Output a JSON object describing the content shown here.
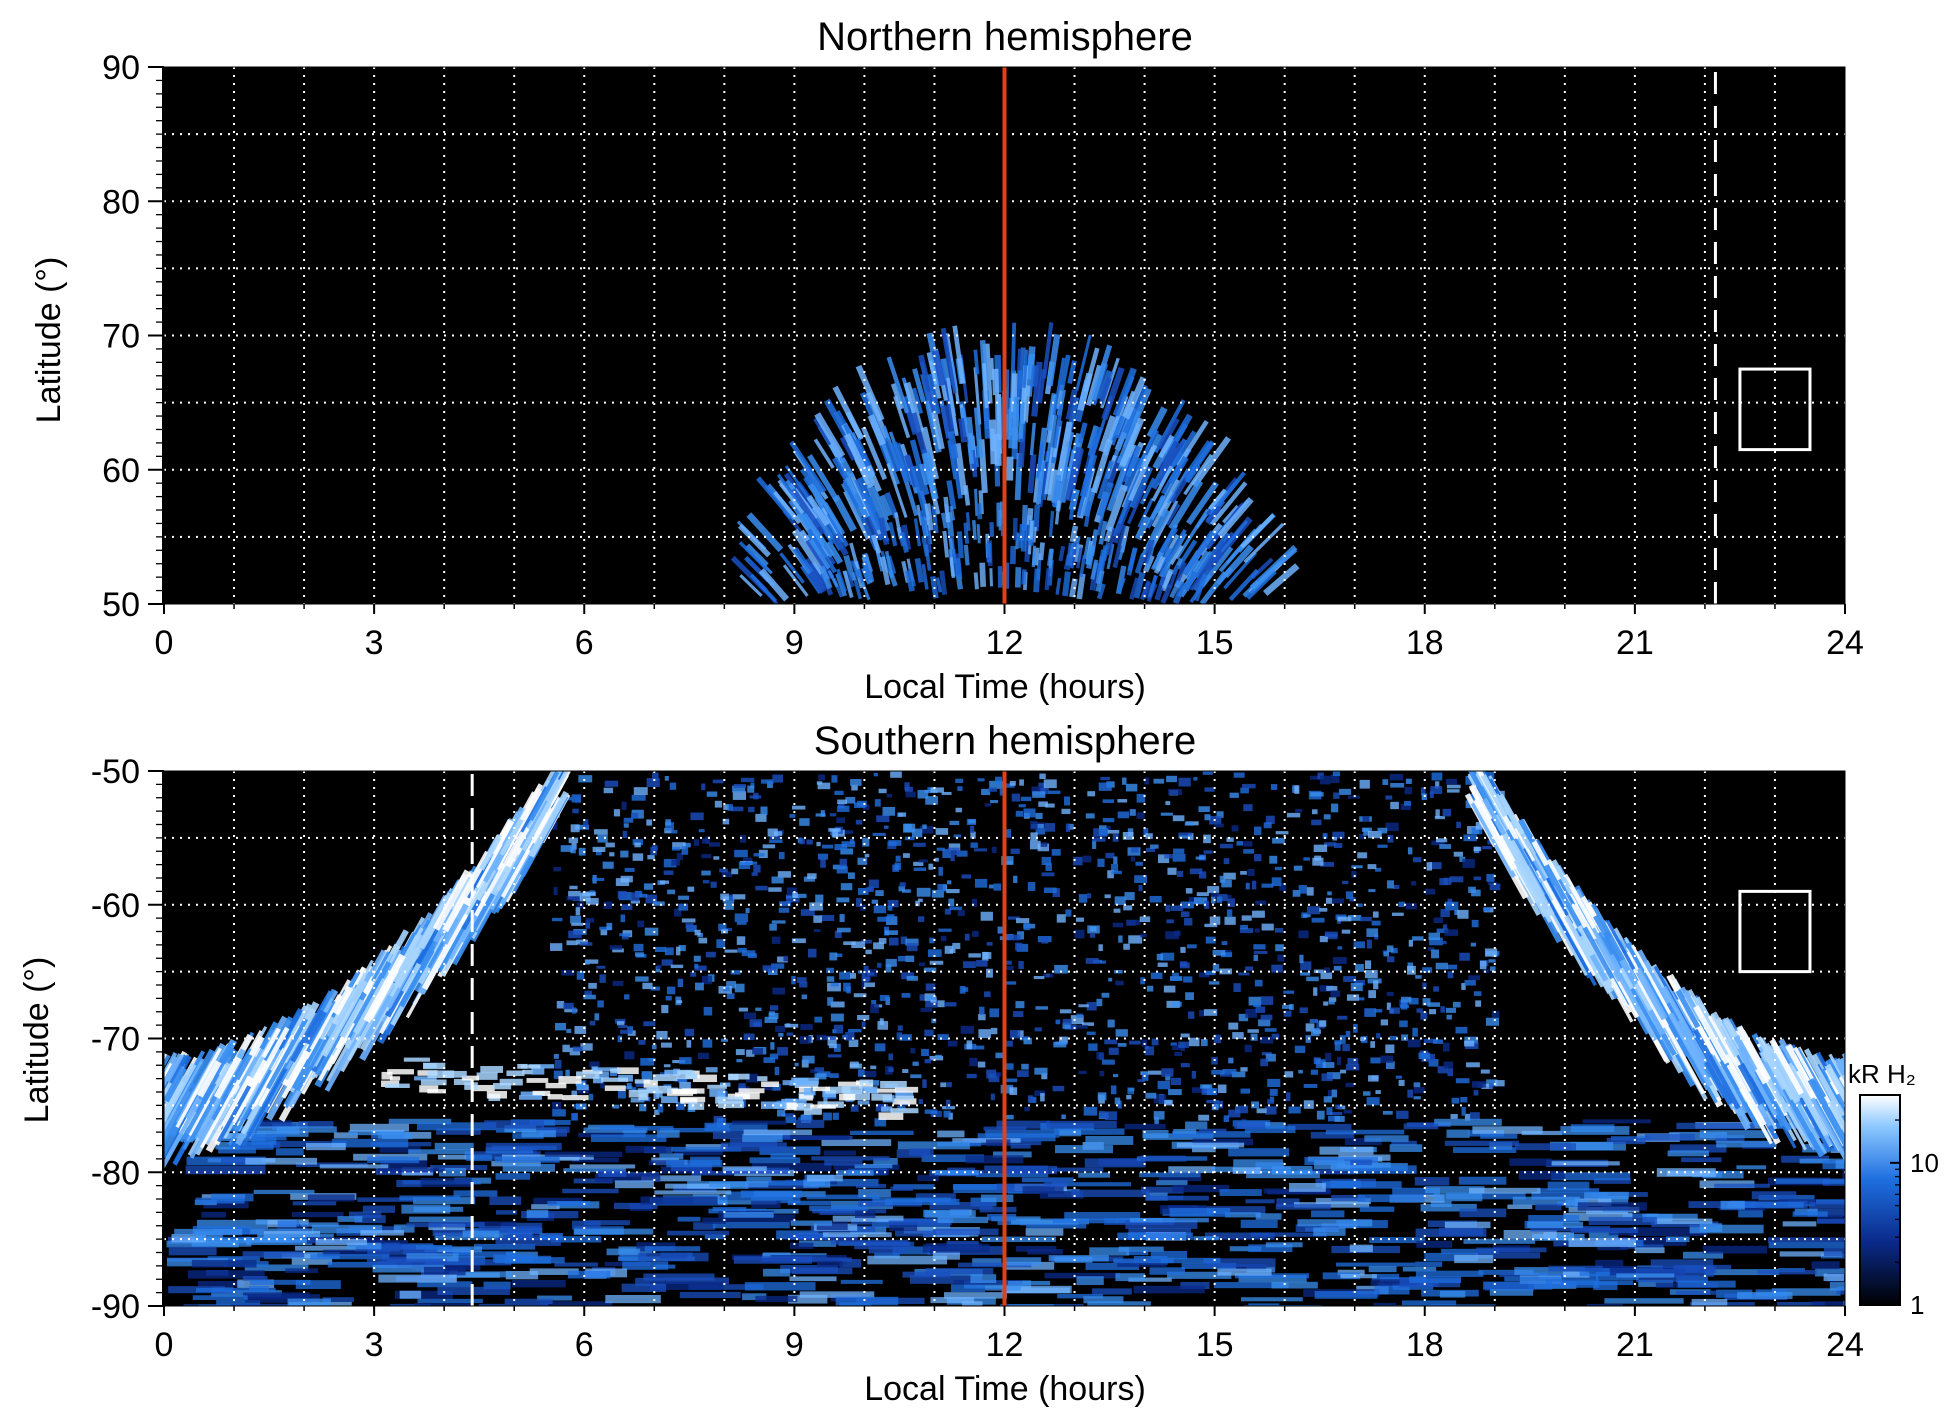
{
  "chart_data": [
    {
      "type": "heatmap",
      "title": "Northern hemisphere",
      "xlabel": "Local Time (hours)",
      "ylabel": "Latitude (°)",
      "xlim": [
        0,
        24
      ],
      "ylim": [
        50,
        90
      ],
      "x_ticks": [
        "0",
        "3",
        "6",
        "9",
        "12",
        "15",
        "18",
        "21",
        "24"
      ],
      "y_ticks": [
        "50",
        "60",
        "70",
        "80",
        "90"
      ],
      "grid": true,
      "background": "#000000",
      "noon_line": {
        "x": 12,
        "color": "#e0401a"
      },
      "dashed_line": {
        "x": 22.15,
        "y_from": 50,
        "y_to": 90,
        "color": "#ffffff"
      },
      "marker_box": {
        "x": [
          22.5,
          23.5
        ],
        "y": [
          61.5,
          67.5
        ]
      },
      "auroral_oval": {
        "center_lt": 12,
        "lt_extent": [
          8.5,
          16.3
        ],
        "peak_latitude": 67.5,
        "bright_band_latitude": [
          58,
          67
        ],
        "inner_band_latitude": [
          50,
          57
        ]
      }
    },
    {
      "type": "heatmap",
      "title": "Southern hemisphere",
      "xlabel": "Local Time (hours)",
      "ylabel": "Latitude (°)",
      "xlim": [
        0,
        24
      ],
      "ylim": [
        -90,
        -50
      ],
      "x_ticks": [
        "0",
        "3",
        "6",
        "9",
        "12",
        "15",
        "18",
        "21",
        "24"
      ],
      "y_ticks": [
        "-50",
        "-60",
        "-70",
        "-80",
        "-90"
      ],
      "grid": true,
      "background": "#000000",
      "noon_line": {
        "x": 12,
        "color": "#e0401a"
      },
      "dashed_line": {
        "x": 4.4,
        "y_from": -90,
        "y_to": -50,
        "color": "#ffffff"
      },
      "marker_box": {
        "x": [
          22.5,
          23.5
        ],
        "y": [
          -65,
          -59
        ]
      },
      "auroral_oval": {
        "dawn_arc_lt": [
          0,
          5.8
        ],
        "dusk_arc_lt": [
          18.6,
          24
        ],
        "arc_bottom_latitude": -73,
        "bright_spot": {
          "lt": [
            3,
            10.5
          ],
          "latitude": -72
        }
      },
      "colorbar": {
        "label": "kR H₂",
        "scale": "log",
        "ticks": [
          "1",
          "10"
        ],
        "range": [
          1,
          30
        ],
        "colors": [
          "#000000",
          "#0a2a8a",
          "#1f6fe0",
          "#8cc8ff",
          "#ffffff"
        ]
      }
    }
  ]
}
